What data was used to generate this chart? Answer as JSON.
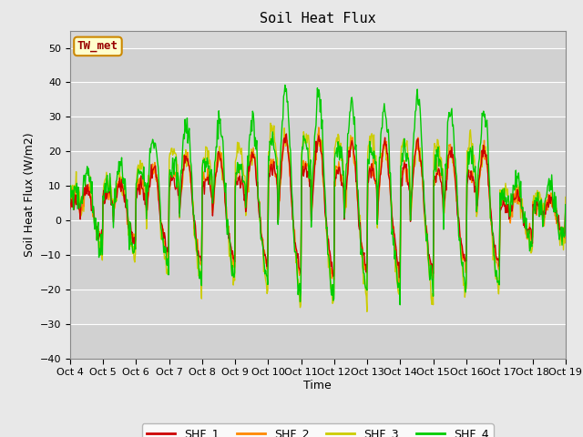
{
  "title": "Soil Heat Flux",
  "ylabel": "Soil Heat Flux (W/m2)",
  "xlabel": "Time",
  "ylim": [
    -40,
    55
  ],
  "yticks": [
    -40,
    -30,
    -20,
    -10,
    0,
    10,
    20,
    30,
    40,
    50
  ],
  "colors": {
    "SHF_1": "#cc0000",
    "SHF_2": "#ff8800",
    "SHF_3": "#cccc00",
    "SHF_4": "#00cc00"
  },
  "legend_label": "TW_met",
  "legend_box_facecolor": "#ffffcc",
  "legend_box_edgecolor": "#cc8800",
  "n_days": 15,
  "points_per_day": 48,
  "start_day": 4,
  "fig_facecolor": "#e8e8e8",
  "plot_facecolor": "#d8d8d8",
  "grid_color": "#ffffff",
  "linewidth": 1.0,
  "title_fontsize": 11,
  "axis_label_fontsize": 9,
  "tick_fontsize": 8,
  "legend_fontsize": 9
}
